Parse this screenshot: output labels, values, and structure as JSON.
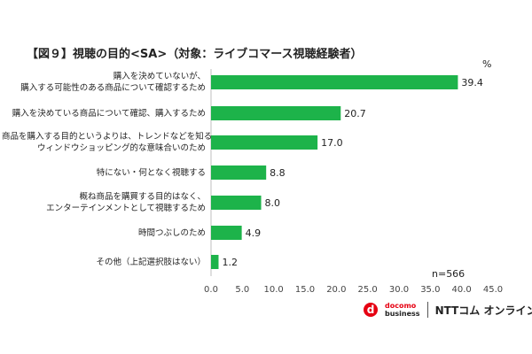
{
  "chart_data": {
    "type": "bar",
    "orientation": "horizontal",
    "title": "【図９】視聴の目的<SA>（対象：ライブコマース視聴経験者）",
    "unit_label": "%",
    "sample_size": "n=566",
    "categories": [
      [
        "購入を決めていないが、",
        "購入する可能性のある商品について確認するため"
      ],
      [
        "購入を決めている商品について確認、購入するため"
      ],
      [
        "商品を購入する目的というよりは、トレンドなどを知る",
        "ウィンドウショッピング的な意味合いのため"
      ],
      [
        "特にない・何となく視聴する"
      ],
      [
        "概ね商品を購買する目的はなく、",
        "エンターテインメントとして視聴するため"
      ],
      [
        "時間つぶしのため"
      ],
      [
        "その他（上記選択肢はない）"
      ]
    ],
    "values": [
      39.4,
      20.7,
      17.0,
      8.8,
      8.0,
      4.9,
      1.2
    ],
    "value_labels": [
      "39.4",
      "20.7",
      "17.0",
      "8.8",
      "8.0",
      "4.9",
      "1.2"
    ],
    "xlim": [
      0,
      45
    ],
    "xticks": [
      "0.0",
      "5.0",
      "10.0",
      "15.0",
      "20.0",
      "25.0",
      "30.0",
      "35.0",
      "40.0",
      "45.0"
    ],
    "bar_color": "#1db34a",
    "grid": false
  },
  "footer": {
    "logo_letter": "d",
    "logo_line1": "docomo",
    "logo_line2": "business",
    "brand": "NTTコム オンライン"
  },
  "colors": {
    "docomo_red": "#e60012"
  }
}
